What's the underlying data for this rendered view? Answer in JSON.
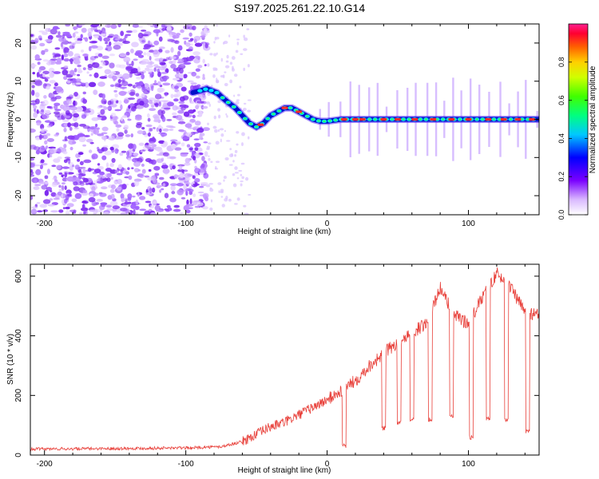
{
  "chart_data": [
    {
      "type": "heatmap",
      "title": "S197.2025.261.22.10.G14",
      "xlabel": "Height of straight line (km)",
      "ylabel": "Frequency (Hz)",
      "xlim": [
        -210,
        150
      ],
      "ylim": [
        -25,
        25
      ],
      "xticks": [
        -200,
        -100,
        0,
        100
      ],
      "xtick_labels": [
        "-200",
        "-100",
        "0",
        "100"
      ],
      "yticks": [
        -20,
        -10,
        0,
        10,
        20
      ],
      "ytick_labels": [
        "-20",
        "-10",
        "0",
        "10",
        "20"
      ],
      "colorbar": {
        "label": "Normalized spectral amplitude",
        "range": [
          0,
          1
        ],
        "ticks": [
          0.0,
          0.2,
          0.4,
          0.6,
          0.8
        ],
        "tick_labels": [
          "0.0",
          "0.2",
          "0.4",
          "0.6",
          "0.8"
        ]
      },
      "ridge": {
        "description": "dominant frequency trace",
        "height_km": [
          -95,
          -85,
          -78,
          -72,
          -65,
          -60,
          -55,
          -50,
          -45,
          -40,
          -35,
          -30,
          -25,
          -20,
          -15,
          -10,
          -5,
          0,
          10,
          20,
          40,
          60,
          80,
          100,
          120,
          150
        ],
        "frequency_hz": [
          7,
          8,
          7,
          5,
          3,
          1,
          -1,
          -2,
          -1,
          1,
          2,
          3,
          3,
          2,
          1,
          0,
          -0.5,
          -0.5,
          0,
          0,
          0,
          0,
          0,
          0,
          0,
          0
        ]
      }
    },
    {
      "type": "line",
      "title": "",
      "xlabel": "Height of straight line (km)",
      "ylabel": "SNR (10 * v/v)",
      "xlim": [
        -210,
        150
      ],
      "ylim": [
        0,
        640
      ],
      "xticks": [
        -200,
        -100,
        0,
        100
      ],
      "xtick_labels": [
        "-200",
        "-100",
        "0",
        "100"
      ],
      "yticks": [
        0,
        200,
        400,
        600
      ],
      "ytick_labels": [
        "0",
        "200",
        "400",
        "600"
      ],
      "color": "#e8403a",
      "series": [
        {
          "name": "SNR",
          "x": [
            -210,
            -150,
            -100,
            -75,
            -60,
            -50,
            -40,
            -30,
            -20,
            -10,
            0,
            10,
            20,
            30,
            40,
            50,
            60,
            70,
            80,
            90,
            100,
            110,
            120,
            130,
            140,
            150
          ],
          "y": [
            20,
            22,
            24,
            28,
            45,
            70,
            95,
            110,
            135,
            160,
            185,
            215,
            250,
            300,
            340,
            380,
            410,
            440,
            560,
            470,
            440,
            530,
            610,
            560,
            480,
            470
          ]
        }
      ],
      "dropouts": [
        {
          "x": 12,
          "y": 30
        },
        {
          "x": 40,
          "y": 90
        },
        {
          "x": 51,
          "y": 110
        },
        {
          "x": 60,
          "y": 120
        },
        {
          "x": 73,
          "y": 120
        },
        {
          "x": 88,
          "y": 130
        },
        {
          "x": 102,
          "y": 60
        },
        {
          "x": 114,
          "y": 120
        },
        {
          "x": 127,
          "y": 120
        },
        {
          "x": 142,
          "y": 80
        }
      ]
    }
  ]
}
